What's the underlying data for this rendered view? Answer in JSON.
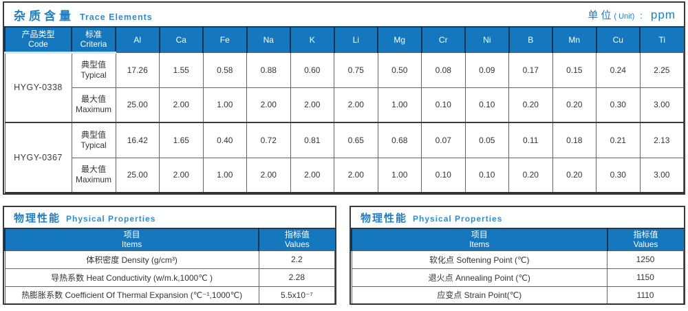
{
  "colors": {
    "accent_blue": "#1b7ec6",
    "header_blue": "#1577bd"
  },
  "trace_elements": {
    "title_zh": "杂质含量",
    "title_en": "Trace Elements",
    "unit_zh": "单位",
    "unit_paren": "( Unit)",
    "unit_colon": ":",
    "unit_value": "ppm",
    "col_code_zh": "产品类型",
    "col_code_en": "Code",
    "col_criteria_zh": "标准",
    "col_criteria_en": "Criteria",
    "element_columns": [
      "Al",
      "Ca",
      "Fe",
      "Na",
      "K",
      "Li",
      "Mg",
      "Cr",
      "Ni",
      "B",
      "Mn",
      "Cu",
      "Ti"
    ],
    "products": [
      {
        "code": "HYGY-0338",
        "rows": [
          {
            "criteria_zh": "典型值",
            "criteria_en": "Typical",
            "values": [
              "17.26",
              "1.55",
              "0.58",
              "0.88",
              "0.60",
              "0.75",
              "0.50",
              "0.08",
              "0.09",
              "0.17",
              "0.15",
              "0.24",
              "2.25"
            ]
          },
          {
            "criteria_zh": "最大值",
            "criteria_en": "Maximum",
            "values": [
              "25.00",
              "2.00",
              "1.00",
              "2.00",
              "2.00",
              "2.00",
              "1.00",
              "0.10",
              "0.10",
              "0.20",
              "0.20",
              "0.30",
              "3.00"
            ]
          }
        ]
      },
      {
        "code": "HYGY-0367",
        "rows": [
          {
            "criteria_zh": "典型值",
            "criteria_en": "Typical",
            "values": [
              "16.42",
              "1.65",
              "0.40",
              "0.72",
              "0.81",
              "0.65",
              "0.68",
              "0.07",
              "0.05",
              "0.11",
              "0.18",
              "0.21",
              "2.13"
            ]
          },
          {
            "criteria_zh": "最大值",
            "criteria_en": "Maximum",
            "values": [
              "25.00",
              "2.00",
              "1.00",
              "2.00",
              "2.00",
              "2.00",
              "1.00",
              "0.10",
              "0.10",
              "0.20",
              "0.20",
              "0.30",
              "3.00"
            ]
          }
        ]
      }
    ]
  },
  "physical_left": {
    "title_zh": "物理性能",
    "title_en": "Physical Properties",
    "col_items_zh": "项目",
    "col_items_en": "Items",
    "col_values_zh": "指标值",
    "col_values_en": "Values",
    "rows": [
      {
        "item": "体积密度 Density (g/cm³)",
        "value": "2.2"
      },
      {
        "item": "导热系数 Heat Conductivity (w/m.k,1000℃ )",
        "value": "2.28"
      },
      {
        "item": "热膨胀系数 Coefficient Of Thermal Expansion (℃⁻¹,1000℃)",
        "value": "5.5x10⁻⁷"
      }
    ]
  },
  "physical_right": {
    "title_zh": "物理性能",
    "title_en": "Physical Properties",
    "col_items_zh": "项目",
    "col_items_en": "Items",
    "col_values_zh": "指标值",
    "col_values_en": "Values",
    "rows": [
      {
        "item": "软化点 Softening Point (℃)",
        "value": "1250"
      },
      {
        "item": "退火点 Annealing Point (℃)",
        "value": "1150"
      },
      {
        "item": "应变点 Strain Point(℃)",
        "value": "1110"
      }
    ]
  }
}
